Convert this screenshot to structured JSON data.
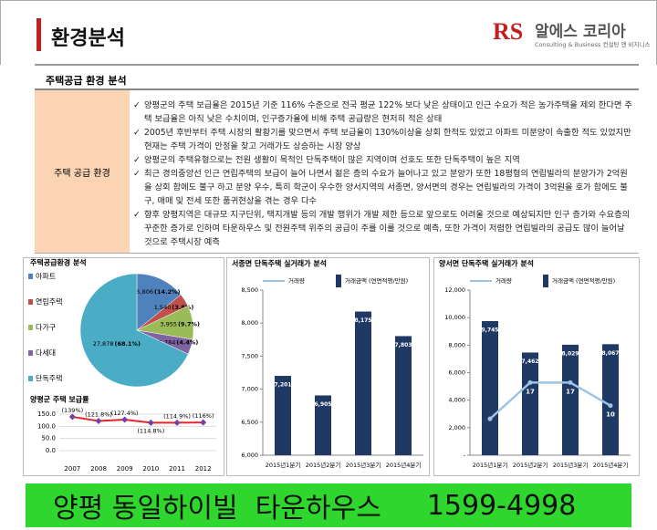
{
  "header": {
    "title": "환경분석",
    "logo_initials": "RS",
    "logo_name": "알에스 코리아",
    "logo_tagline": "Consulting & Business 컨설팅 앤 비지니스"
  },
  "section_title": "주택공급 환경 분석",
  "table": {
    "label": "주택 공급 환경",
    "items": [
      "양평군의 주택 보급율은 2015년 기준 116% 수준으로 전국 평균 122% 보다 낮은 상태이고 인근 수요가 적은 농가주택을 제외 한다면 주택 보급율은 아직 낮은 수치이며, 인구증가율에 비해 주택 공급량은 현저히 적은 상태",
      "2005년 후반부터 주택 시장의 활황기를 맞으면서 주택 보급율이 130%이상을 상회 한적도 있었고 아파트 미분양이 속출한 적도 있었지만 현재는 주택 가격이 안정을 찾고 거래가도 상승하는 시장 양상",
      "양평군의 주택유형으로는 전원 생활이 목적인 단독주택이 많은 지역이며 선호도 또한 단독주택이 높은 지역",
      "최근 경의중앙선 인근 연립주택의 보급이 늘어 나면서 젊은 층의 수요가 늘어나고 있고 분양가 또한 18평형의 연립빌라의 분양가가 2억원을 상회 함에도 불구 하고 분양 우수, 특히 학군이 우수한 양서지역의 서종면, 양서면의 경우는 연립빌라의 가격이 3억원을 호가 함에도 불구, 매매 및 전세 또한 품귀현상을 겪는 경우 다수",
      "향후 양평지역은 대규모 지구단위, 택지개발 등의 개발 행위가 개발 제한 등으로 앞으로도 어려울 것으로 예상되지만 인구 증가와 수요층의 꾸준한 증가로 인하여 타운하우스 및 전원주택 위주의 공급이 주를 이룰 것으로 예측, 또한 가격이 저렴한 연립빌라의 공급도 많이 늘어날 것으로 주택시장 예측"
    ]
  },
  "chart_data": [
    {
      "type": "pie",
      "title": "주택공급환경 분석",
      "categories": [
        "아파트",
        "연립주택",
        "다가구",
        "다세대",
        "단독주택"
      ],
      "values": [
        5806,
        1540,
        3955,
        1784,
        27878
      ],
      "value_labels": [
        "5,806",
        "1,540",
        "3,955",
        "1,784",
        "27,878"
      ],
      "percents": [
        14.2,
        3.8,
        9.7,
        4.4,
        68.1
      ],
      "percent_labels": [
        "(14.2%)",
        "(3.8%)",
        "(9.7%)",
        "(4.4%)",
        "(68.1%)"
      ],
      "colors": [
        "#4f81bd",
        "#c0504d",
        "#9bbb59",
        "#8064a2",
        "#4bacc6"
      ]
    },
    {
      "type": "line",
      "title": "양평군 주택 보급률",
      "categories": [
        "2007",
        "2008",
        "2009",
        "2010",
        "2011",
        "2012"
      ],
      "values": [
        139,
        121.8,
        127.4,
        114.8,
        114.9,
        116
      ],
      "value_labels": [
        "(139%)",
        "(121.8%)",
        "(127.4%)",
        "(114.8%)",
        "(114.9%)",
        "(116%)"
      ],
      "color": "#e8262a",
      "marker_color": "#7a3fa0",
      "ylim": [
        0,
        150
      ],
      "yticks": [
        {
          "value": 0,
          "label": "0.0"
        },
        {
          "value": 50,
          "label": "50.0"
        },
        {
          "value": 100,
          "label": "100.0"
        },
        {
          "value": 150,
          "label": "150.0"
        }
      ]
    },
    {
      "type": "bar",
      "title": "서종면 단독주택 실거래가 분석",
      "categories": [
        "2015년1분기",
        "2015년2분기",
        "2015년3분기",
        "2015년4분기"
      ],
      "legend": [
        "거래량",
        "거래금액 (연면적평/만원)"
      ],
      "legend_colors": [
        "#9dc3e6",
        "#1f3864"
      ],
      "series": [
        {
          "name": "거래금액 (연면적평/만원)",
          "color": "#1f3864",
          "values": [
            7201,
            6905,
            8175,
            7803
          ],
          "value_labels": [
            "7,201",
            "6,905",
            "8,175",
            "7,803"
          ]
        }
      ],
      "ylim": [
        6000,
        8500
      ],
      "yticks": [
        {
          "value": 6000,
          "label": "6,000"
        },
        {
          "value": 6500,
          "label": "6,500"
        },
        {
          "value": 7000,
          "label": "7,000"
        },
        {
          "value": 7500,
          "label": "7,500"
        },
        {
          "value": 8000,
          "label": "8,000"
        },
        {
          "value": 8500,
          "label": "8,500"
        }
      ]
    },
    {
      "type": "bar",
      "title": "양서면 단독주택 실거래가 분석",
      "categories": [
        "2015년1분기",
        "2015년2분기",
        "2015년3분기",
        "2015년4분기"
      ],
      "legend": [
        "거래량",
        "거래금액 (연면적평/만원)"
      ],
      "legend_colors": [
        "#9dc3e6",
        "#1f3864"
      ],
      "series": [
        {
          "name": "거래금액 (연면적평/만원)",
          "color": "#1f3864",
          "values": [
            9745,
            7462,
            8029,
            8067
          ],
          "value_labels": [
            "9,745",
            "7,462",
            "8,029",
            "8,067"
          ]
        },
        {
          "name": "거래량",
          "color": "#9dc3e6",
          "axis": "y2",
          "values": [
            6,
            17,
            17,
            10
          ]
        }
      ],
      "ylim": [
        0,
        12000
      ],
      "yticks": [
        {
          "value": 0,
          "label": "-"
        },
        {
          "value": 2000,
          "label": "2,000"
        },
        {
          "value": 4000,
          "label": "4,000"
        },
        {
          "value": 6000,
          "label": "6,000"
        },
        {
          "value": 8000,
          "label": "8,000"
        },
        {
          "value": 10000,
          "label": "10,000"
        },
        {
          "value": 12000,
          "label": "12,000"
        }
      ],
      "y2lim": [
        -5,
        45
      ]
    }
  ],
  "banner": {
    "name": "양평 동일하이빌  타운하우스",
    "phone": "1599-4998"
  }
}
